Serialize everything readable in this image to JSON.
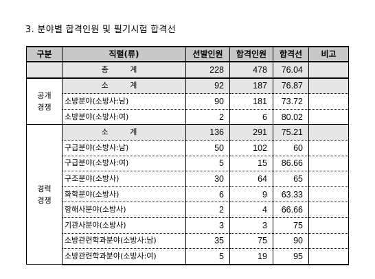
{
  "title": "3. 분야별 합격인원 및 필기시험 합격선",
  "headers": [
    "구분",
    "직렬(류)",
    "선발인원",
    "합격인원",
    "합격선",
    "비고"
  ],
  "total": {
    "label": "총   계",
    "selected": "228",
    "passed": "478",
    "cutoff": "76.04",
    "note": ""
  },
  "public": {
    "category": "공개\n경쟁",
    "subtotal": {
      "label": "소   계",
      "selected": "92",
      "passed": "187",
      "cutoff": "76.87"
    },
    "rows": [
      {
        "name": "소방분야(소방사:남)",
        "selected": "90",
        "passed": "181",
        "cutoff": "73.72"
      },
      {
        "name": "소방분야(소방사:여)",
        "selected": "2",
        "passed": "6",
        "cutoff": "80.02"
      }
    ]
  },
  "career": {
    "category": "경력\n경쟁",
    "subtotal": {
      "label": "소   계",
      "selected": "136",
      "passed": "291",
      "cutoff": "75.21"
    },
    "rows": [
      {
        "name": "구급분야(소방사:남)",
        "selected": "50",
        "passed": "102",
        "cutoff": "60"
      },
      {
        "name": "구급분야(소방사:여)",
        "selected": "5",
        "passed": "15",
        "cutoff": "86.66"
      },
      {
        "name": "구조분야(소방사)",
        "selected": "30",
        "passed": "64",
        "cutoff": "65"
      },
      {
        "name": "화학분야(소방사)",
        "selected": "6",
        "passed": "9",
        "cutoff": "63.33"
      },
      {
        "name": "항해사분야(소방사)",
        "selected": "2",
        "passed": "4",
        "cutoff": "66.66"
      },
      {
        "name": "기관사분야(소방사)",
        "selected": "3",
        "passed": "3",
        "cutoff": "75"
      },
      {
        "name": "소방관련학과분야(소방사:남)",
        "selected": "35",
        "passed": "75",
        "cutoff": "90"
      },
      {
        "name": "소방관련학과분야(소방사:여)",
        "selected": "5",
        "passed": "19",
        "cutoff": "95"
      }
    ]
  }
}
